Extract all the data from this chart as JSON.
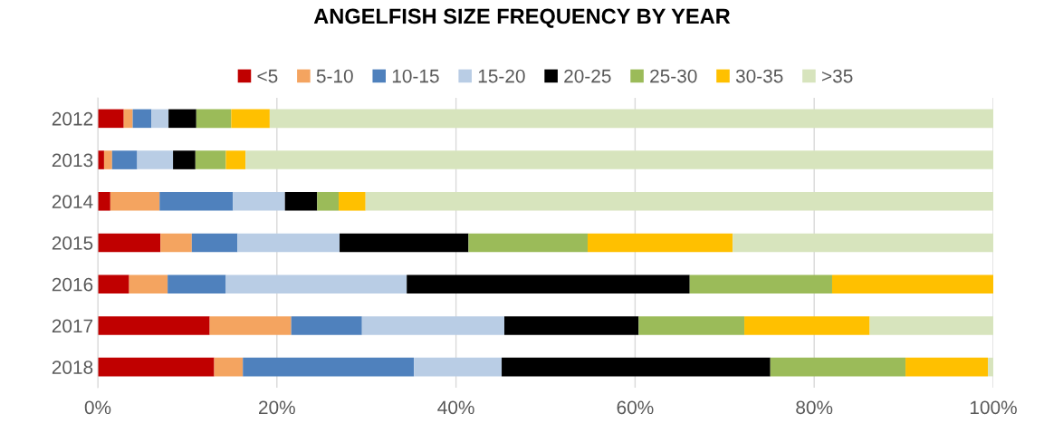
{
  "chart_data": {
    "type": "bar",
    "orientation": "horizontal",
    "stacked": true,
    "title": "ANGELFISH SIZE FREQUENCY BY YEAR",
    "categories": [
      "2012",
      "2013",
      "2014",
      "2015",
      "2016",
      "2017",
      "2018"
    ],
    "series": [
      {
        "name": "<5",
        "color": "#c00000",
        "values": [
          2.9,
          0.7,
          1.4,
          7.0,
          3.5,
          12.5,
          13.0
        ]
      },
      {
        "name": "5-10",
        "color": "#f4a460",
        "values": [
          1.0,
          0.9,
          5.5,
          3.5,
          4.3,
          9.1,
          3.2
        ]
      },
      {
        "name": "10-15",
        "color": "#4f81bd",
        "values": [
          2.1,
          2.8,
          8.2,
          5.1,
          6.5,
          7.9,
          19.1
        ]
      },
      {
        "name": "15-20",
        "color": "#b9cde5",
        "values": [
          1.9,
          4.0,
          5.8,
          11.4,
          20.2,
          15.9,
          9.8
        ]
      },
      {
        "name": "20-25",
        "color": "#000000",
        "values": [
          3.1,
          2.5,
          3.6,
          14.4,
          31.6,
          15.0,
          30.0
        ]
      },
      {
        "name": "25-30",
        "color": "#9bbb59",
        "values": [
          3.9,
          3.4,
          2.4,
          13.3,
          15.9,
          11.8,
          15.1
        ]
      },
      {
        "name": "30-35",
        "color": "#ffc000",
        "values": [
          4.3,
          2.2,
          3.0,
          16.2,
          18.0,
          14.0,
          9.2
        ]
      },
      {
        "name": ">35",
        "color": "#d7e4bd",
        "values": [
          80.8,
          83.5,
          70.1,
          29.1,
          0,
          13.8,
          0.6
        ]
      }
    ],
    "xlim": [
      0,
      100
    ],
    "xticks": [
      {
        "value": 0,
        "label": "0%"
      },
      {
        "value": 20,
        "label": "20%"
      },
      {
        "value": 40,
        "label": "40%"
      },
      {
        "value": 60,
        "label": "60%"
      },
      {
        "value": 80,
        "label": "80%"
      },
      {
        "value": 100,
        "label": "100%"
      }
    ],
    "grid": "x",
    "legend": "top"
  }
}
